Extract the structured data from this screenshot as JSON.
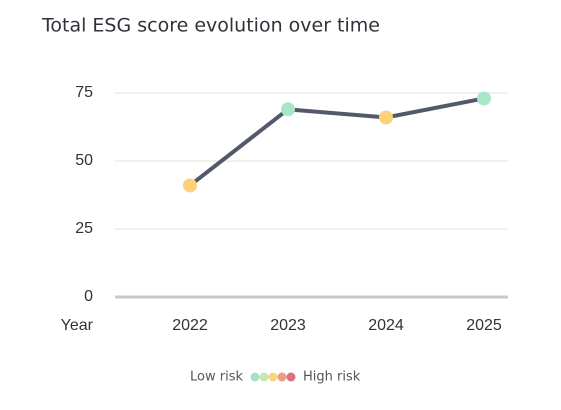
{
  "chart_data": {
    "type": "line",
    "title": "Total ESG score evolution over time",
    "x_label": "Year",
    "categories": [
      "2022",
      "2023",
      "2024",
      "2025"
    ],
    "values": [
      41,
      69,
      66,
      73
    ],
    "color": "#525a6a",
    "point_colors": [
      "#fdd07a",
      "#a8e6c8",
      "#fdd07a",
      "#a8e6c8"
    ],
    "ylim": [
      0,
      75
    ],
    "yticks": [
      0,
      25,
      50,
      75
    ],
    "grid": true,
    "legend": {
      "low_label": "Low risk",
      "high_label": "High risk",
      "colors": [
        "#a8e2c6",
        "#c6e8b4",
        "#f7d67e",
        "#ef9a8a",
        "#d9727c"
      ]
    }
  }
}
